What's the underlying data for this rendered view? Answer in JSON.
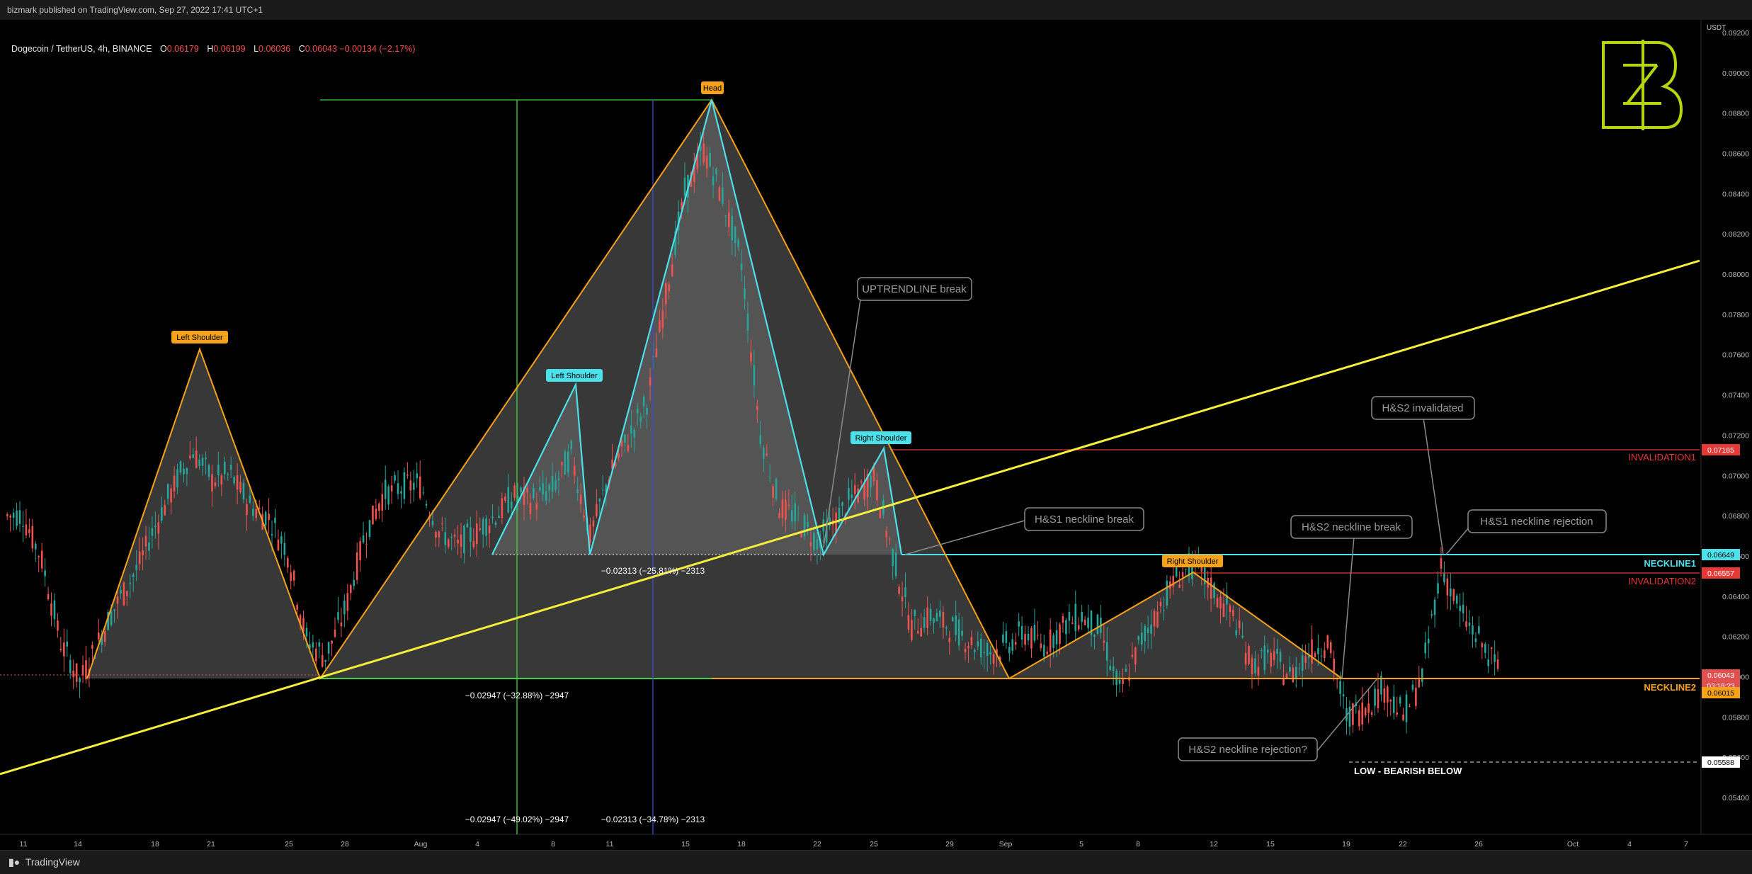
{
  "header": {
    "published": "bizmark published on TradingView.com, Sep 27, 2022 17:41 UTC+1",
    "symbol": "Dogecoin / TetherUS, 4h, BINANCE",
    "ohlc": [
      {
        "k": "O",
        "v": "0.06179"
      },
      {
        "k": "H",
        "v": "0.06199"
      },
      {
        "k": "L",
        "v": "0.06036"
      },
      {
        "k": "C",
        "v": "0.06043"
      },
      {
        "k": "",
        "v": "−0.00134 (−2.17%)"
      }
    ]
  },
  "footer": {
    "logo": "TradingView"
  },
  "colors": {
    "orange": "#f7a21b",
    "cyan": "#4ce0ea",
    "yellow": "#f5ee3c",
    "red": "#e53935",
    "green": "#3fd33f",
    "blue": "#3a4bd8",
    "callout_border": "#8a8a8a",
    "callout_text": "#9c9c9c",
    "candle_up": "#26a69a",
    "candle_down": "#ef5350",
    "logo_green": "#b5d60f"
  },
  "chart_data": {
    "type": "candlestick",
    "title": "Dogecoin / TetherUS, 4h, BINANCE",
    "y_unit": "USDT",
    "y_range": [
      0.0532,
      0.0934
    ],
    "y_ticks": [
      "0.05400",
      "0.05600",
      "0.05800",
      "0.06000",
      "0.06200",
      "0.06400",
      "0.06600",
      "0.06800",
      "0.07000",
      "0.07200",
      "0.07400",
      "0.07600",
      "0.07800",
      "0.08000",
      "0.08200",
      "0.08400",
      "0.08600",
      "0.08800",
      "0.09000",
      "0.09200"
    ],
    "x_ticks": [
      "11",
      "14",
      "18",
      "21",
      "25",
      "28",
      "Aug",
      "4",
      "8",
      "11",
      "15",
      "18",
      "22",
      "25",
      "29",
      "Sep",
      "5",
      "8",
      "12",
      "15",
      "19",
      "22",
      "26",
      "Oct",
      "4",
      "7"
    ],
    "price_series": [
      [
        "Jul 11",
        0.068
      ],
      [
        "Jul 12",
        0.0658
      ],
      [
        "Jul 13",
        0.0617
      ],
      [
        "Jul 14",
        0.0598
      ],
      [
        "Jul 15",
        0.0618
      ],
      [
        "Jul 16",
        0.0637
      ],
      [
        "Jul 17",
        0.0653
      ],
      [
        "Jul 18",
        0.0675
      ],
      [
        "Jul 19",
        0.0695
      ],
      [
        "Jul 20",
        0.0712
      ],
      [
        "Jul 21",
        0.0698
      ],
      [
        "Jul 22",
        0.07
      ],
      [
        "Jul 23",
        0.0685
      ],
      [
        "Jul 24",
        0.0679
      ],
      [
        "Jul 25",
        0.0662
      ],
      [
        "Jul 26",
        0.0618
      ],
      [
        "Jul 27",
        0.061
      ],
      [
        "Jul 28",
        0.0632
      ],
      [
        "Jul 29",
        0.0668
      ],
      [
        "Jul 30",
        0.069
      ],
      [
        "Jul 31",
        0.0694
      ],
      [
        "Aug 1",
        0.0696
      ],
      [
        "Aug 2",
        0.0672
      ],
      [
        "Aug 3",
        0.0665
      ],
      [
        "Aug 4",
        0.0672
      ],
      [
        "Aug 5",
        0.068
      ],
      [
        "Aug 6",
        0.069
      ],
      [
        "Aug 7",
        0.0688
      ],
      [
        "Aug 8",
        0.0693
      ],
      [
        "Aug 9",
        0.071
      ],
      [
        "Aug 10",
        0.067
      ],
      [
        "Aug 11",
        0.07
      ],
      [
        "Aug 12",
        0.0718
      ],
      [
        "Aug 13",
        0.0736
      ],
      [
        "Aug 14",
        0.079
      ],
      [
        "Aug 15",
        0.084
      ],
      [
        "Aug 16",
        0.0862
      ],
      [
        "Aug 17",
        0.0838
      ],
      [
        "Aug 18",
        0.0805
      ],
      [
        "Aug 19",
        0.072
      ],
      [
        "Aug 20",
        0.0685
      ],
      [
        "Aug 21",
        0.0678
      ],
      [
        "Aug 22",
        0.0667
      ],
      [
        "Aug 23",
        0.0678
      ],
      [
        "Aug 24",
        0.069
      ],
      [
        "Aug 25",
        0.07
      ],
      [
        "Aug 26",
        0.066
      ],
      [
        "Aug 27",
        0.0625
      ],
      [
        "Aug 28",
        0.063
      ],
      [
        "Aug 29",
        0.0625
      ],
      [
        "Aug 30",
        0.0618
      ],
      [
        "Aug 31",
        0.0612
      ],
      [
        "Sep 1",
        0.0615
      ],
      [
        "Sep 2",
        0.0622
      ],
      [
        "Sep 3",
        0.0615
      ],
      [
        "Sep 4",
        0.0625
      ],
      [
        "Sep 5",
        0.063
      ],
      [
        "Sep 6",
        0.0622
      ],
      [
        "Sep 7",
        0.0592
      ],
      [
        "Sep 8",
        0.0615
      ],
      [
        "Sep 9",
        0.0632
      ],
      [
        "Sep 10",
        0.065
      ],
      [
        "Sep 11",
        0.0655
      ],
      [
        "Sep 12",
        0.0642
      ],
      [
        "Sep 13",
        0.063
      ],
      [
        "Sep 14",
        0.0606
      ],
      [
        "Sep 15",
        0.061
      ],
      [
        "Sep 16",
        0.06
      ],
      [
        "Sep 17",
        0.0612
      ],
      [
        "Sep 18",
        0.0618
      ],
      [
        "Sep 19",
        0.058
      ],
      [
        "Sep 20",
        0.0585
      ],
      [
        "Sep 21",
        0.0595
      ],
      [
        "Sep 22",
        0.058
      ],
      [
        "Sep 23",
        0.06
      ],
      [
        "Sep 24",
        0.0655
      ],
      [
        "Sep 25",
        0.0632
      ],
      [
        "Sep 26",
        0.0618
      ],
      [
        "Sep 27",
        0.0604
      ]
    ],
    "levels": [
      {
        "name": "INVALIDATION1",
        "price": 0.07185,
        "badge": "0.07185",
        "color": "red"
      },
      {
        "name": "NECKLINE1",
        "price": 0.06649,
        "badge": "0.06649",
        "color": "cyan"
      },
      {
        "name": "INVALIDATION2",
        "price": 0.06557,
        "badge": "0.06557",
        "color": "red"
      },
      {
        "name": "NECKLINE2",
        "price": 0.06015,
        "badge": "0.06015",
        "color": "orange"
      }
    ],
    "price_badges": [
      {
        "price": 0.06043,
        "text": "0.06043",
        "sub": "03:18:23",
        "color": "red"
      },
      {
        "price": 0.05588,
        "text": "0.05588",
        "color": "white"
      }
    ],
    "low_label": "LOW - BEARISH BELOW",
    "pattern_labels": [
      {
        "text": "Left Shoulder",
        "color": "orange"
      },
      {
        "text": "Head",
        "color": "orange"
      },
      {
        "text": "Left Shoulder",
        "color": "cyan"
      },
      {
        "text": "Right Shoulder",
        "color": "cyan"
      },
      {
        "text": "Right Shoulder",
        "color": "orange"
      }
    ],
    "callouts": [
      "UPTRENDLINE break",
      "H&S1 neckline break",
      "H&S2 neckline break",
      "H&S2 invalidated",
      "H&S1 neckline rejection",
      "H&S2 neckline rejection?"
    ],
    "measurements": [
      "−0.02313 (−25.81%) −2313",
      "−0.02947 (−32.88%) −2947",
      "−0.02947 (−49.02%) −2947",
      "−0.02313 (−34.78%) −2313"
    ]
  }
}
